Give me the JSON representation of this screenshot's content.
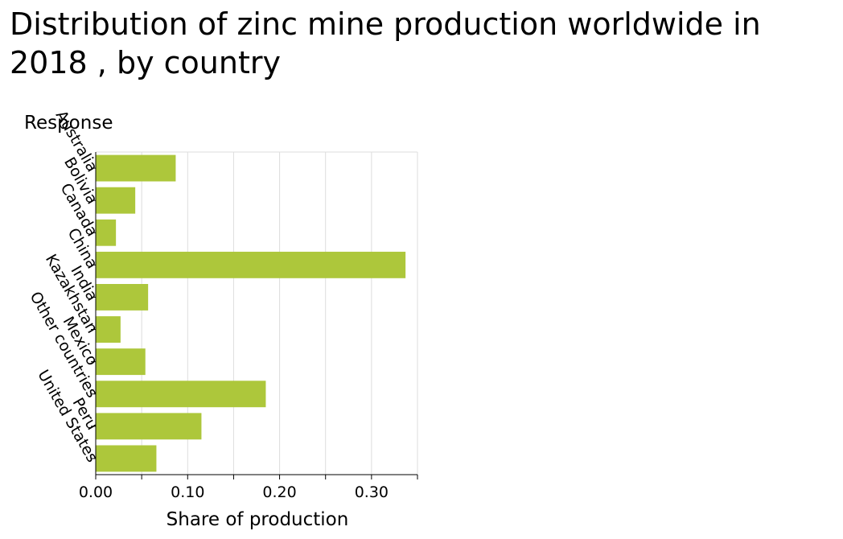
{
  "chart_data": {
    "type": "bar",
    "orientation": "horizontal",
    "title": "Distribution of zinc mine production worldwide in 2018 , by country",
    "xlabel": "Share of production",
    "ylabel": "Response",
    "categories": [
      "Australia",
      "Bolivia",
      "Canada",
      "China",
      "India",
      "Kazakhstan",
      "Mexico",
      "Other countries",
      "Peru",
      "United States"
    ],
    "values": [
      0.087,
      0.043,
      0.022,
      0.337,
      0.057,
      0.027,
      0.054,
      0.185,
      0.115,
      0.066
    ],
    "xlim": [
      0,
      0.35
    ],
    "xticks": [
      0.0,
      0.05,
      0.1,
      0.15,
      0.2,
      0.25,
      0.3,
      0.35
    ],
    "xtick_labels": [
      "0.00",
      "",
      "0.10",
      "",
      "0.20",
      "",
      "0.30",
      ""
    ],
    "grid": true,
    "bar_color": "#adc73b",
    "grid_color": "#dddddd"
  }
}
